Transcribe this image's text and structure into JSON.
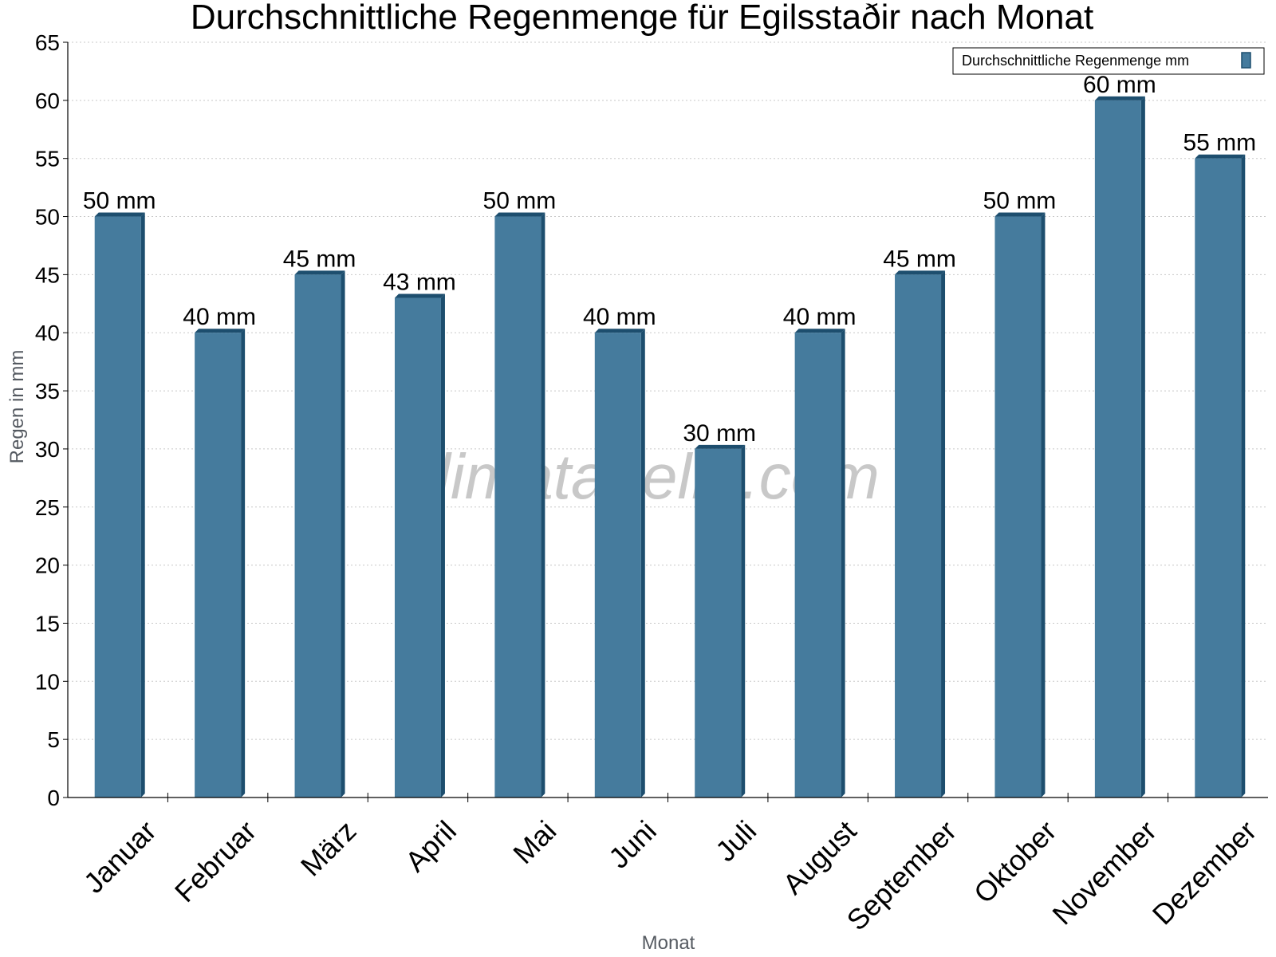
{
  "chart_data": {
    "type": "bar",
    "title": "Durchschnittliche Regenmenge für Egilsstaðir nach Monat",
    "xlabel": "Monat",
    "ylabel": "Regen in mm",
    "categories": [
      "Januar",
      "Februar",
      "März",
      "April",
      "Mai",
      "Juni",
      "Juli",
      "August",
      "September",
      "Oktober",
      "November",
      "Dezember"
    ],
    "series": [
      {
        "name": "Durchschnittliche Regenmenge mm",
        "values": [
          50,
          40,
          45,
          43,
          50,
          40,
          30,
          40,
          45,
          50,
          60,
          55
        ],
        "labels": [
          "50 mm",
          "40 mm",
          "45 mm",
          "43 mm",
          "50 mm",
          "40 mm",
          "30 mm",
          "40 mm",
          "45 mm",
          "50 mm",
          "60 mm",
          "55 mm"
        ],
        "color": "#457b9d",
        "edge_color": "#1d4e6e"
      }
    ],
    "ylim": [
      0,
      65
    ],
    "yticks": [
      0,
      5,
      10,
      15,
      20,
      25,
      30,
      35,
      40,
      45,
      50,
      55,
      60,
      65
    ],
    "grid": true,
    "legend_position": "top-right",
    "watermark": "klimatabelle.com"
  }
}
